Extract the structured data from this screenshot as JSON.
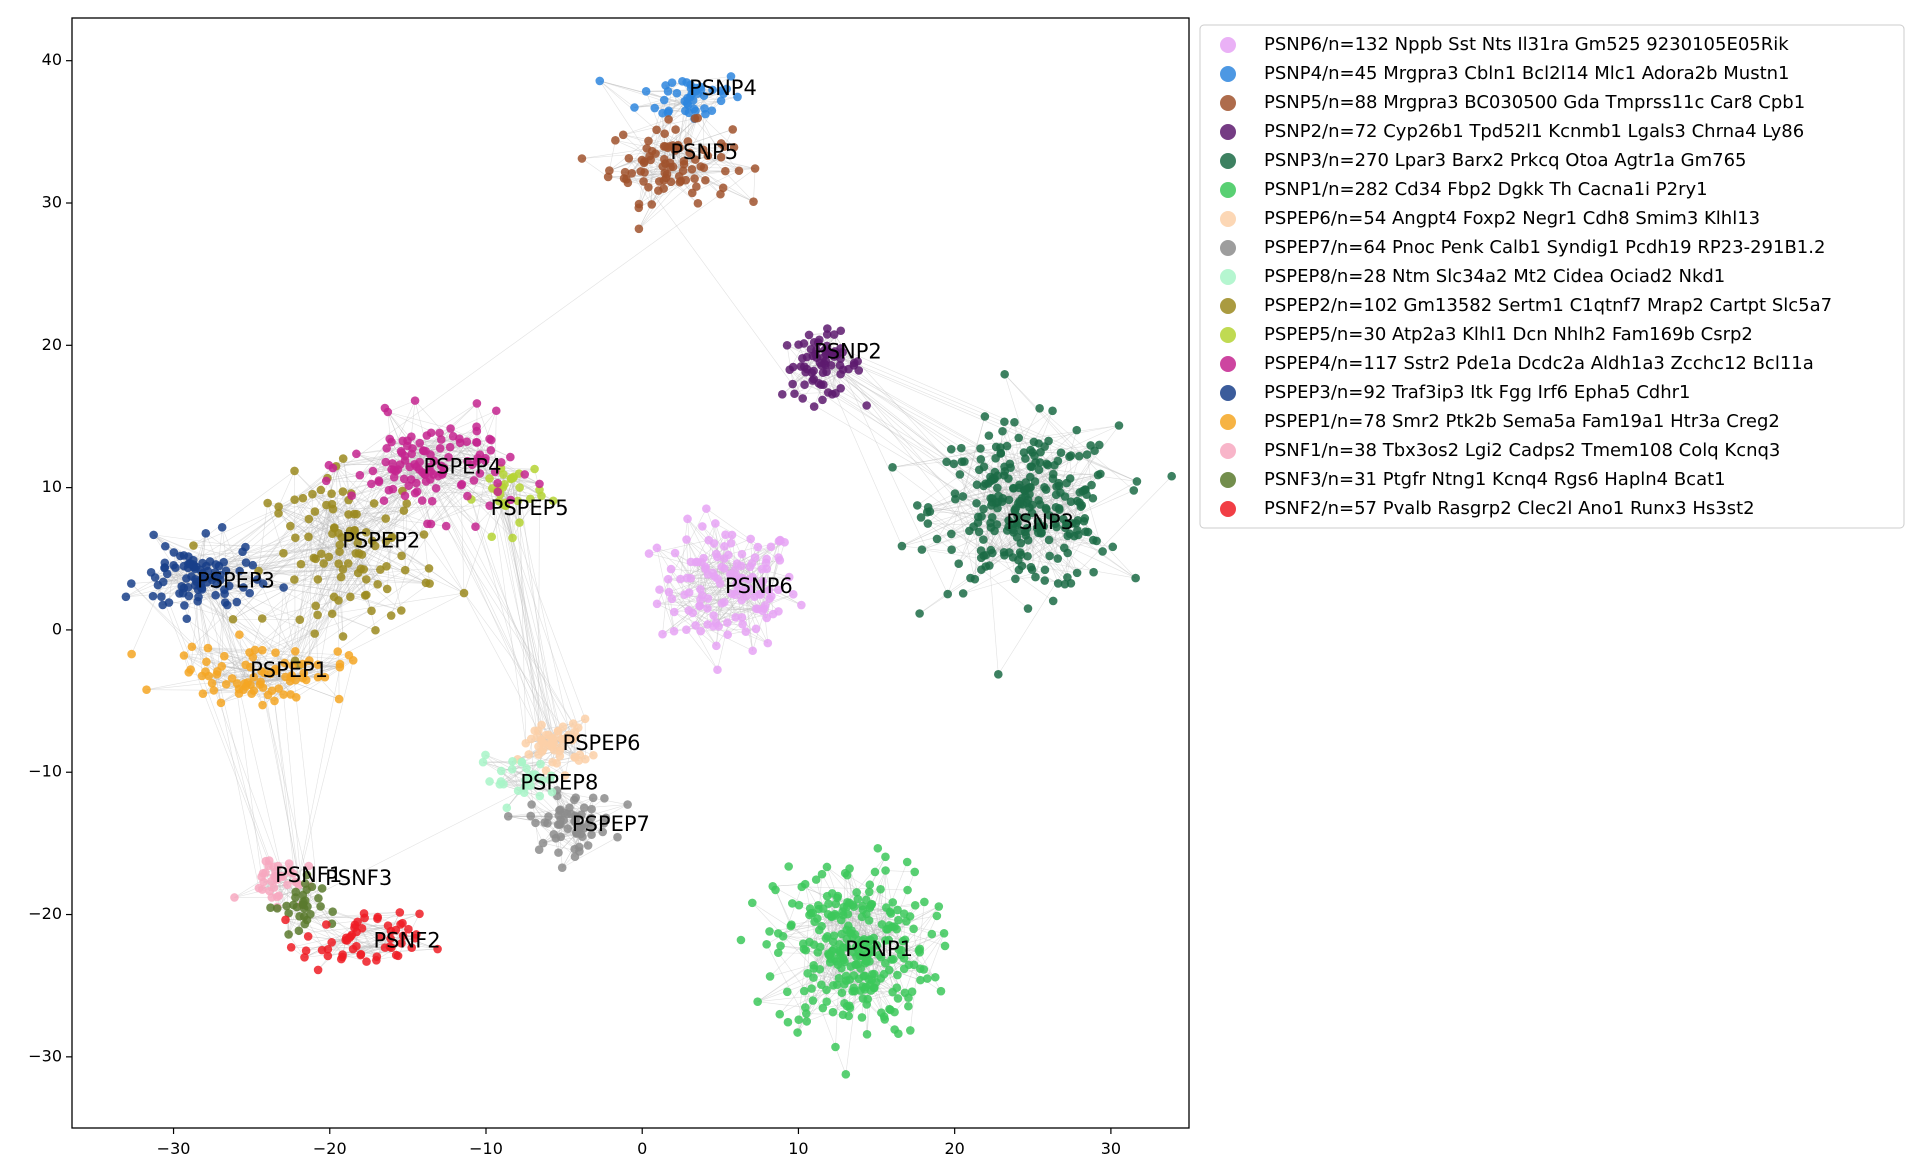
{
  "chart_data": {
    "type": "scatter",
    "title": "",
    "xlabel": "",
    "ylabel": "",
    "xlim": [
      -36.5,
      35
    ],
    "ylim": [
      -35,
      43
    ],
    "xticks": [
      -30,
      -20,
      -10,
      0,
      10,
      20,
      30
    ],
    "yticks": [
      -30,
      -20,
      -10,
      0,
      10,
      20,
      30,
      40
    ],
    "grid": false,
    "legend_position": "outside-right-top",
    "edges": {
      "visible": true,
      "color": "#bdbdbd"
    },
    "series": [
      {
        "name": "PSNP6/n=132 Nppb Sst Nts Il31ra Gm525 9230105E05Rik",
        "label": "PSNP6",
        "n": 132,
        "color": "#e6a3f5",
        "center": [
          5.5,
          3.0
        ],
        "spread": [
          2.6,
          2.6
        ],
        "label_pos": [
          5.3,
          3.0
        ]
      },
      {
        "name": "PSNP4/n=45 Mrgpra3 Cbln1 Bcl2l14 Mlc1 Adora2b Mustn1",
        "label": "PSNP4",
        "n": 45,
        "color": "#2e86de",
        "center": [
          3.2,
          37.5
        ],
        "spread": [
          2.0,
          1.1
        ],
        "label_pos": [
          3.0,
          38.0
        ]
      },
      {
        "name": "PSNP5/n=88 Mrgpra3 BC030500 Gda Tmprss11c Car8 Cpb1",
        "label": "PSNP5",
        "n": 88,
        "color": "#a0522d",
        "center": [
          1.8,
          32.8
        ],
        "spread": [
          2.3,
          1.6
        ],
        "label_pos": [
          1.8,
          33.5
        ]
      },
      {
        "name": "PSNP2/n=72 Cyp26b1 Tpd52l1 Kcnmb1 Lgals3 Chrna4 Ly86",
        "label": "PSNP2",
        "n": 72,
        "color": "#5d1a6e",
        "center": [
          11.5,
          18.6
        ],
        "spread": [
          1.5,
          1.3
        ],
        "label_pos": [
          11.0,
          19.5
        ]
      },
      {
        "name": "PSNP3/n=270 Lpar3 Barx2 Prkcq Otoa Agtr1a Gm765",
        "label": "PSNP3",
        "n": 270,
        "color": "#1b6b45",
        "center": [
          24.5,
          8.5
        ],
        "spread": [
          3.5,
          3.4
        ],
        "label_pos": [
          23.3,
          7.5
        ]
      },
      {
        "name": "PSNP1/n=282 Cd34 Fbp2 Dgkk Th Cacna1i P2ry1",
        "label": "PSNP1",
        "n": 282,
        "color": "#3cc85a",
        "center": [
          13.5,
          -22.5
        ],
        "spread": [
          2.9,
          3.6
        ],
        "label_pos": [
          13.0,
          -22.5
        ]
      },
      {
        "name": "PSPEP6/n=54 Angpt4 Foxp2 Negr1 Cdh8 Smim3 Klhl13",
        "label": "PSPEP6",
        "n": 54,
        "color": "#fcd0a8",
        "center": [
          -5.5,
          -8.0
        ],
        "spread": [
          1.3,
          1.0
        ],
        "label_pos": [
          -5.1,
          -8.0
        ]
      },
      {
        "name": "PSPEP7/n=64 Pnoc Penk Calb1 Syndig1 Pcdh19 RP23-291B1.2",
        "label": "PSPEP7",
        "n": 64,
        "color": "#8c8c8c",
        "center": [
          -4.5,
          -13.5
        ],
        "spread": [
          1.6,
          1.2
        ],
        "label_pos": [
          -4.5,
          -13.7
        ]
      },
      {
        "name": "PSPEP8/n=28 Ntm Slc34a2 Mt2 Cidea Ociad2 Nkd1",
        "label": "PSPEP8",
        "n": 28,
        "color": "#a8f5c8",
        "center": [
          -8.0,
          -10.5
        ],
        "spread": [
          1.5,
          0.9
        ],
        "label_pos": [
          -7.8,
          -10.8
        ]
      },
      {
        "name": "PSPEP2/n=102 Gm13582 Sertm1 C1qtnf7 Mrap2 Cartpt Slc5a7",
        "label": "PSPEP2",
        "n": 102,
        "color": "#9b8a1f",
        "center": [
          -18.5,
          5.5
        ],
        "spread": [
          3.2,
          3.2
        ],
        "label_pos": [
          -19.2,
          6.2
        ]
      },
      {
        "name": "PSPEP5/n=30 Atp2a3 Klhl1 Dcn Nhlh2 Fam169b Csrp2",
        "label": "PSPEP5",
        "n": 30,
        "color": "#b5d334",
        "center": [
          -8.5,
          9.5
        ],
        "spread": [
          1.2,
          1.6
        ],
        "label_pos": [
          -9.7,
          8.5
        ]
      },
      {
        "name": "PSPEP4/n=117 Sstr2 Pde1a Dcdc2a Aldh1a3 Zcchc12 Bcl11a",
        "label": "PSPEP4",
        "n": 117,
        "color": "#c4248f",
        "center": [
          -13.5,
          11.5
        ],
        "spread": [
          3.0,
          2.0
        ],
        "label_pos": [
          -14.0,
          11.4
        ]
      },
      {
        "name": "PSPEP3/n=92 Traf3ip3 Itk Fgg Irf6 Epha5 Cdhr1",
        "label": "PSPEP3",
        "n": 92,
        "color": "#193f8a",
        "center": [
          -28.5,
          3.5
        ],
        "spread": [
          2.2,
          1.5
        ],
        "label_pos": [
          -28.5,
          3.4
        ]
      },
      {
        "name": "PSPEP1/n=78 Smr2 Ptk2b Sema5a Fam19a1 Htr3a Creg2",
        "label": "PSPEP1",
        "n": 78,
        "color": "#f5a623",
        "center": [
          -24.5,
          -3.0
        ],
        "spread": [
          3.2,
          1.2
        ],
        "label_pos": [
          -25.1,
          -2.9
        ]
      },
      {
        "name": "PSNF1/n=38 Tbx3os2 Lgi2 Cadps2 Tmem108 Colq Kcnq3",
        "label": "PSNF1",
        "n": 38,
        "color": "#f7a8bf",
        "center": [
          -23.5,
          -17.5
        ],
        "spread": [
          1.2,
          1.0
        ],
        "label_pos": [
          -23.5,
          -17.3
        ]
      },
      {
        "name": "PSNF3/n=31 Ptgfr Ntng1 Kcnq4 Rgs6 Hapln4 Bcat1",
        "label": "PSNF3",
        "n": 31,
        "color": "#5b7a2e",
        "center": [
          -22.0,
          -19.5
        ],
        "spread": [
          0.9,
          1.3
        ],
        "label_pos": [
          -20.3,
          -17.5
        ]
      },
      {
        "name": "PSNF2/n=57 Pvalb Rasgrp2 Clec2l Ano1 Runx3 Hs3st2",
        "label": "PSNF2",
        "n": 57,
        "color": "#ee1c25",
        "center": [
          -18.0,
          -22.0
        ],
        "spread": [
          2.2,
          1.2
        ],
        "label_pos": [
          -17.2,
          -21.9
        ]
      }
    ]
  }
}
